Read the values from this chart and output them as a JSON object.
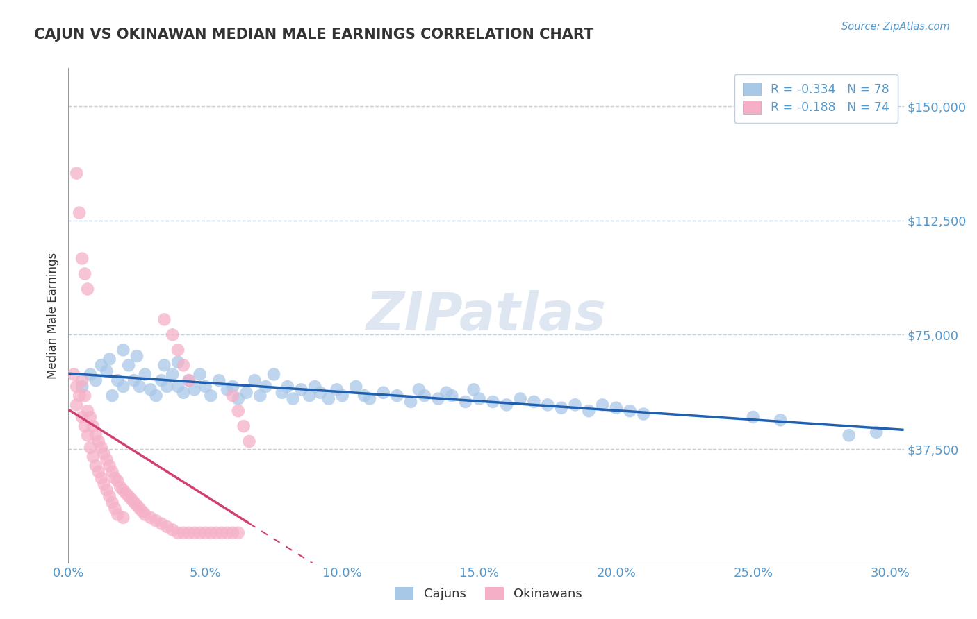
{
  "title": "CAJUN VS OKINAWAN MEDIAN MALE EARNINGS CORRELATION CHART",
  "source_text": "Source: ZipAtlas.com",
  "ylabel": "Median Male Earnings",
  "xlim": [
    0.0,
    0.305
  ],
  "ylim": [
    0,
    162500
  ],
  "yticks": [
    0,
    37500,
    75000,
    112500,
    150000
  ],
  "ytick_labels": [
    "",
    "$37,500",
    "$75,000",
    "$112,500",
    "$150,000"
  ],
  "xticks": [
    0.0,
    0.05,
    0.1,
    0.15,
    0.2,
    0.25,
    0.3
  ],
  "xtick_labels": [
    "0.0%",
    "5.0%",
    "10.0%",
    "15.0%",
    "20.0%",
    "25.0%",
    "30.0%"
  ],
  "cajun_color": "#a8c8e8",
  "okinawan_color": "#f5b0c8",
  "cajun_line_color": "#2060b0",
  "okinawan_line_color": "#d04070",
  "r_cajun": -0.334,
  "n_cajun": 78,
  "r_okinawan": -0.188,
  "n_okinawan": 74,
  "legend_labels": [
    "Cajuns",
    "Okinawans"
  ],
  "watermark": "ZIPatlas",
  "axis_color": "#5599cc",
  "title_color": "#333333",
  "grid_color": "#c0d0e0",
  "cajun_x": [
    0.005,
    0.008,
    0.01,
    0.012,
    0.014,
    0.015,
    0.016,
    0.018,
    0.02,
    0.02,
    0.022,
    0.024,
    0.025,
    0.026,
    0.028,
    0.03,
    0.032,
    0.034,
    0.035,
    0.036,
    0.038,
    0.04,
    0.04,
    0.042,
    0.044,
    0.046,
    0.048,
    0.05,
    0.052,
    0.055,
    0.058,
    0.06,
    0.062,
    0.065,
    0.068,
    0.07,
    0.072,
    0.075,
    0.078,
    0.08,
    0.082,
    0.085,
    0.088,
    0.09,
    0.092,
    0.095,
    0.098,
    0.1,
    0.105,
    0.108,
    0.11,
    0.115,
    0.12,
    0.125,
    0.128,
    0.13,
    0.135,
    0.138,
    0.14,
    0.145,
    0.148,
    0.15,
    0.155,
    0.16,
    0.165,
    0.17,
    0.175,
    0.18,
    0.185,
    0.19,
    0.195,
    0.2,
    0.205,
    0.21,
    0.25,
    0.26,
    0.285,
    0.295
  ],
  "cajun_y": [
    58000,
    62000,
    60000,
    65000,
    63000,
    67000,
    55000,
    60000,
    58000,
    70000,
    65000,
    60000,
    68000,
    58000,
    62000,
    57000,
    55000,
    60000,
    65000,
    58000,
    62000,
    58000,
    66000,
    56000,
    60000,
    57000,
    62000,
    58000,
    55000,
    60000,
    57000,
    58000,
    54000,
    56000,
    60000,
    55000,
    58000,
    62000,
    56000,
    58000,
    54000,
    57000,
    55000,
    58000,
    56000,
    54000,
    57000,
    55000,
    58000,
    55000,
    54000,
    56000,
    55000,
    53000,
    57000,
    55000,
    54000,
    56000,
    55000,
    53000,
    57000,
    54000,
    53000,
    52000,
    54000,
    53000,
    52000,
    51000,
    52000,
    50000,
    52000,
    51000,
    50000,
    49000,
    48000,
    47000,
    42000,
    43000
  ],
  "okinawan_x": [
    0.002,
    0.003,
    0.003,
    0.004,
    0.005,
    0.005,
    0.006,
    0.006,
    0.007,
    0.007,
    0.008,
    0.008,
    0.009,
    0.009,
    0.01,
    0.01,
    0.011,
    0.011,
    0.012,
    0.012,
    0.013,
    0.013,
    0.014,
    0.014,
    0.015,
    0.015,
    0.016,
    0.016,
    0.017,
    0.017,
    0.018,
    0.018,
    0.019,
    0.02,
    0.02,
    0.021,
    0.022,
    0.023,
    0.024,
    0.025,
    0.026,
    0.027,
    0.028,
    0.03,
    0.032,
    0.034,
    0.036,
    0.038,
    0.04,
    0.042,
    0.044,
    0.046,
    0.048,
    0.05,
    0.052,
    0.054,
    0.056,
    0.058,
    0.06,
    0.062,
    0.003,
    0.004,
    0.035,
    0.038,
    0.005,
    0.006,
    0.007,
    0.04,
    0.042,
    0.044,
    0.06,
    0.062,
    0.064,
    0.066
  ],
  "okinawan_y": [
    62000,
    58000,
    52000,
    55000,
    60000,
    48000,
    55000,
    45000,
    50000,
    42000,
    48000,
    38000,
    45000,
    35000,
    42000,
    32000,
    40000,
    30000,
    38000,
    28000,
    36000,
    26000,
    34000,
    24000,
    32000,
    22000,
    30000,
    20000,
    28000,
    18000,
    27000,
    16000,
    25000,
    24000,
    15000,
    23000,
    22000,
    21000,
    20000,
    19000,
    18000,
    17000,
    16000,
    15000,
    14000,
    13000,
    12000,
    11000,
    10000,
    10000,
    10000,
    10000,
    10000,
    10000,
    10000,
    10000,
    10000,
    10000,
    10000,
    10000,
    128000,
    115000,
    80000,
    75000,
    100000,
    95000,
    90000,
    70000,
    65000,
    60000,
    55000,
    50000,
    45000,
    40000
  ]
}
